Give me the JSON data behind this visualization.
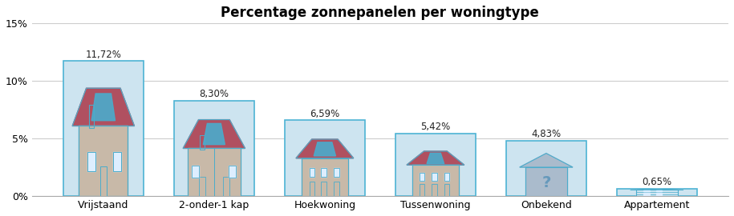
{
  "title": "Percentage zonnepanelen per woningtype",
  "categories": [
    "Vrijstaand",
    "2-onder-1 kap",
    "Hoekwoning",
    "Tussenwoning",
    "Onbekend",
    "Appartement"
  ],
  "values": [
    11.72,
    8.3,
    6.59,
    5.42,
    4.83,
    0.65
  ],
  "labels": [
    "11,72%",
    "8,30%",
    "6,59%",
    "5,42%",
    "4,83%",
    "0,65%"
  ],
  "bar_color": "#cde4f0",
  "bar_edge_color": "#4db3d4",
  "ylim": [
    0,
    15
  ],
  "yticks": [
    0,
    5,
    10,
    15
  ],
  "ytick_labels": [
    "0%",
    "5%",
    "10%",
    "15%"
  ],
  "title_fontsize": 12,
  "label_fontsize": 8.5,
  "tick_fontsize": 9,
  "background_color": "#ffffff",
  "grid_color": "#cccccc",
  "house_wall": "#c8b9a8",
  "house_roof": "#b05060",
  "house_solar": "#4aaccc",
  "house_outline": "#4aaccc",
  "house_door": "#c8b9a8",
  "house_window": "#e8e8e8"
}
